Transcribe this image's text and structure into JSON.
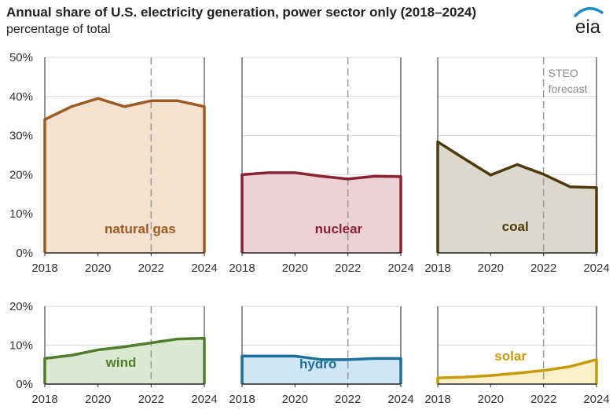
{
  "header": {
    "title": "Annual share of U.S. electricity generation, power sector only (2018–2024)",
    "subtitle": "percentage of total"
  },
  "logo": {
    "text": "eia"
  },
  "colors": {
    "grid": "#d9d9d9",
    "axis": "#222222",
    "forecast_line": "#9a9a9a"
  },
  "chart_data": [
    {
      "type": "area",
      "name": "natural gas",
      "row": 0,
      "col": 0,
      "x": [
        2018,
        2019,
        2020,
        2021,
        2022,
        2023,
        2024
      ],
      "values": [
        34.1,
        37.4,
        39.5,
        37.4,
        38.9,
        38.9,
        37.4
      ],
      "ylim": [
        0,
        50
      ],
      "yticks": [
        "0%",
        "10%",
        "20%",
        "30%",
        "40%",
        "50%"
      ],
      "xticks": [
        "2018",
        "2020",
        "2022",
        "2024"
      ],
      "line_color": "#9c5a24",
      "fill_color": "#f4e1d0",
      "label_color": "#9c5a24",
      "forecast_from": 2022
    },
    {
      "type": "area",
      "name": "nuclear",
      "row": 0,
      "col": 1,
      "x": [
        2018,
        2019,
        2020,
        2021,
        2022,
        2023,
        2024
      ],
      "values": [
        20.0,
        20.5,
        20.5,
        19.6,
        18.9,
        19.6,
        19.5
      ],
      "ylim": [
        0,
        50
      ],
      "xticks": [
        "2018",
        "2020",
        "2022",
        "2024"
      ],
      "line_color": "#8b2232",
      "fill_color": "#ecd1d6",
      "label_color": "#8b2232",
      "forecast_from": 2022
    },
    {
      "type": "area",
      "name": "coal",
      "row": 0,
      "col": 2,
      "x": [
        2018,
        2019,
        2020,
        2021,
        2022,
        2023,
        2024
      ],
      "values": [
        28.4,
        24.1,
        19.9,
        22.6,
        20.1,
        16.9,
        16.7
      ],
      "ylim": [
        0,
        50
      ],
      "xticks": [
        "2018",
        "2020",
        "2022",
        "2024"
      ],
      "line_color": "#4f3a0c",
      "fill_color": "#dcd8cb",
      "label_color": "#4f3a0c",
      "forecast_from": 2022,
      "annotation": [
        "STEO",
        "forecast"
      ]
    },
    {
      "type": "area",
      "name": "wind",
      "row": 1,
      "col": 0,
      "x": [
        2018,
        2019,
        2020,
        2021,
        2022,
        2023,
        2024
      ],
      "values": [
        6.6,
        7.4,
        8.8,
        9.6,
        10.6,
        11.6,
        11.8
      ],
      "ylim": [
        0,
        20
      ],
      "yticks": [
        "0%",
        "10%",
        "20%"
      ],
      "xticks": [
        "2018",
        "2020",
        "2022",
        "2024"
      ],
      "line_color": "#4e7d2b",
      "fill_color": "#dbe8d2",
      "label_color": "#4e7d2b",
      "forecast_from": 2022
    },
    {
      "type": "area",
      "name": "hydro",
      "row": 1,
      "col": 1,
      "x": [
        2018,
        2019,
        2020,
        2021,
        2022,
        2023,
        2024
      ],
      "values": [
        7.2,
        7.2,
        7.2,
        6.3,
        6.3,
        6.6,
        6.6
      ],
      "ylim": [
        0,
        20
      ],
      "xticks": [
        "2018",
        "2020",
        "2022",
        "2024"
      ],
      "line_color": "#1d6f97",
      "fill_color": "#cfe7f5",
      "label_color": "#1d6f97",
      "forecast_from": 2022
    },
    {
      "type": "area",
      "name": "solar",
      "row": 1,
      "col": 2,
      "x": [
        2018,
        2019,
        2020,
        2021,
        2022,
        2023,
        2024
      ],
      "values": [
        1.6,
        1.8,
        2.2,
        2.8,
        3.5,
        4.5,
        6.3
      ],
      "ylim": [
        0,
        20
      ],
      "xticks": [
        "2018",
        "2020",
        "2022",
        "2024"
      ],
      "line_color": "#c89a0a",
      "fill_color": "#fbf0c9",
      "label_color": "#c89a0a",
      "forecast_from": 2022
    }
  ]
}
